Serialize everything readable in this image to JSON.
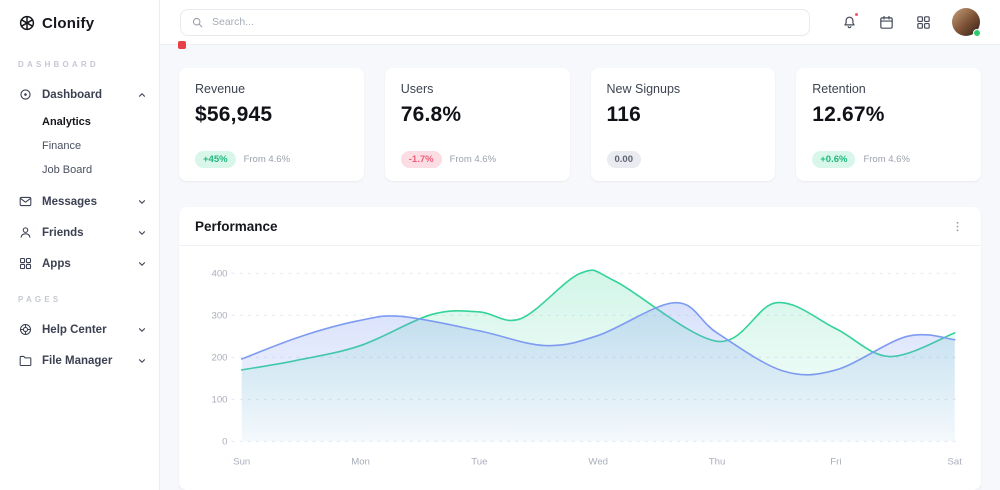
{
  "brand": {
    "name": "Clonify"
  },
  "sidebar": {
    "section_labels": [
      "DASHBOARD",
      "PAGES"
    ],
    "items": [
      {
        "label": "Dashboard",
        "icon": "disc-icon",
        "expanded": true,
        "children": [
          "Analytics",
          "Finance",
          "Job Board"
        ]
      },
      {
        "label": "Messages",
        "icon": "mail-icon"
      },
      {
        "label": "Friends",
        "icon": "user-icon"
      },
      {
        "label": "Apps",
        "icon": "grid-icon"
      },
      {
        "label": "Help Center",
        "icon": "lifebuoy-icon"
      },
      {
        "label": "File Manager",
        "icon": "folder-icon"
      }
    ]
  },
  "topbar": {
    "search_placeholder": "Search...",
    "icons": [
      "bell-icon",
      "calendar-icon",
      "grid-menu-icon",
      "avatar"
    ]
  },
  "stats": [
    {
      "title": "Revenue",
      "value": "$56,945",
      "badge": "+45%",
      "badge_type": "positive",
      "note": "From 4.6%"
    },
    {
      "title": "Users",
      "value": "76.8%",
      "badge": "-1.7%",
      "badge_type": "negative",
      "note": "From 4.6%"
    },
    {
      "title": "New Signups",
      "value": "116",
      "badge": "0.00",
      "badge_type": "neutral",
      "note": ""
    },
    {
      "title": "Retention",
      "value": "12.67%",
      "badge": "+0.6%",
      "badge_type": "positive",
      "note": "From 4.6%"
    }
  ],
  "performance": {
    "title": "Performance"
  },
  "colors": {
    "positive_text": "#1db97c",
    "positive_bg": "#d8f6ea",
    "negative_text": "#ee5f78",
    "negative_bg": "#fbdde3",
    "neutral_text": "#5d6470",
    "neutral_bg": "#e9ebf0",
    "green_line": "#34d399",
    "blue_line": "#7e9bf2",
    "notification_red": "#f4526a",
    "online_green": "#2ecc71"
  },
  "chart_data": {
    "type": "area",
    "title": "Performance",
    "categories": [
      "Sun",
      "Mon",
      "Tue",
      "Wed",
      "Thu",
      "Fri",
      "Sat"
    ],
    "xlabel": "",
    "ylabel": "",
    "ylim": [
      0,
      400
    ],
    "yticks": [
      0,
      100,
      200,
      300,
      400
    ],
    "grid": "dashed-horizontal",
    "legend": "none",
    "series": [
      {
        "name": "series-green",
        "color": "#34d399",
        "points": [
          [
            0,
            170
          ],
          [
            0.45,
            192
          ],
          [
            1,
            228
          ],
          [
            1.6,
            302
          ],
          [
            2,
            308
          ],
          [
            2.35,
            292
          ],
          [
            2.85,
            400
          ],
          [
            3.15,
            380
          ],
          [
            4,
            238
          ],
          [
            4.5,
            330
          ],
          [
            5,
            268
          ],
          [
            5.45,
            202
          ],
          [
            6,
            258
          ]
        ]
      },
      {
        "name": "series-blue",
        "color": "#7e9bf2",
        "points": [
          [
            0,
            196
          ],
          [
            0.5,
            250
          ],
          [
            1,
            288
          ],
          [
            1.35,
            297
          ],
          [
            2,
            263
          ],
          [
            2.55,
            228
          ],
          [
            3,
            252
          ],
          [
            3.65,
            330
          ],
          [
            4,
            258
          ],
          [
            4.55,
            168
          ],
          [
            5,
            170
          ],
          [
            5.6,
            250
          ],
          [
            6,
            242
          ]
        ]
      }
    ]
  }
}
